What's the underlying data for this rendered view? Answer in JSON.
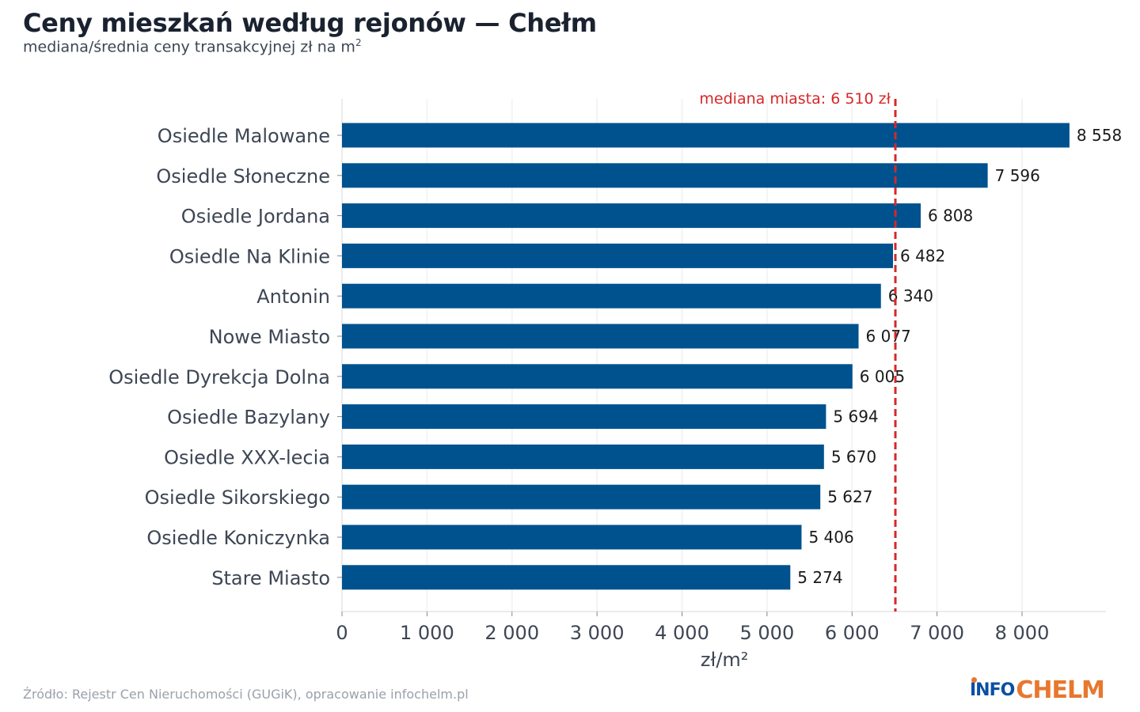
{
  "title": "Ceny mieszkań według rejonów — Chełm",
  "subtitle": "mediana/średnia ceny transakcyjnej zł na m",
  "subtitle_sup": "2",
  "source": "Źródło: Rejestr Cen Nieruchomości (GUGiK), opracowanie infochelm.pl",
  "logo": {
    "part1": "INFO",
    "part2": "CHELM"
  },
  "colors": {
    "bar": "#00528f",
    "median_line": "#d62828",
    "grid": "#e6e6e6",
    "text": "#3d4654"
  },
  "chart_data": {
    "type": "bar",
    "orientation": "horizontal",
    "categories": [
      "Osiedle Malowane",
      "Osiedle Słoneczne",
      "Osiedle Jordana",
      "Osiedle Na Klinie",
      "Antonin",
      "Nowe Miasto",
      "Osiedle Dyrekcja Dolna",
      "Osiedle Bazylany",
      "Osiedle XXX-lecia",
      "Osiedle Sikorskiego",
      "Osiedle Koniczynka",
      "Stare Miasto"
    ],
    "values": [
      8558,
      7596,
      6808,
      6482,
      6340,
      6077,
      6005,
      5694,
      5670,
      5627,
      5406,
      5274
    ],
    "value_labels": [
      "8 558",
      "7 596",
      "6 808",
      "6 482",
      "6 340",
      "6 077",
      "6 005",
      "5 694",
      "5 670",
      "5 627",
      "5 406",
      "5 274"
    ],
    "xlabel": "zł/m²",
    "xlim": [
      0,
      9000
    ],
    "xticks": [
      0,
      1000,
      2000,
      3000,
      4000,
      5000,
      6000,
      7000,
      8000
    ],
    "xtick_labels": [
      "0",
      "1 000",
      "2 000",
      "3 000",
      "4 000",
      "5 000",
      "6 000",
      "7 000",
      "8 000"
    ],
    "grid": "vertical",
    "reference_line": {
      "value": 6510,
      "label": "mediana miasta: 6 510 zł",
      "style": "dashed"
    }
  }
}
